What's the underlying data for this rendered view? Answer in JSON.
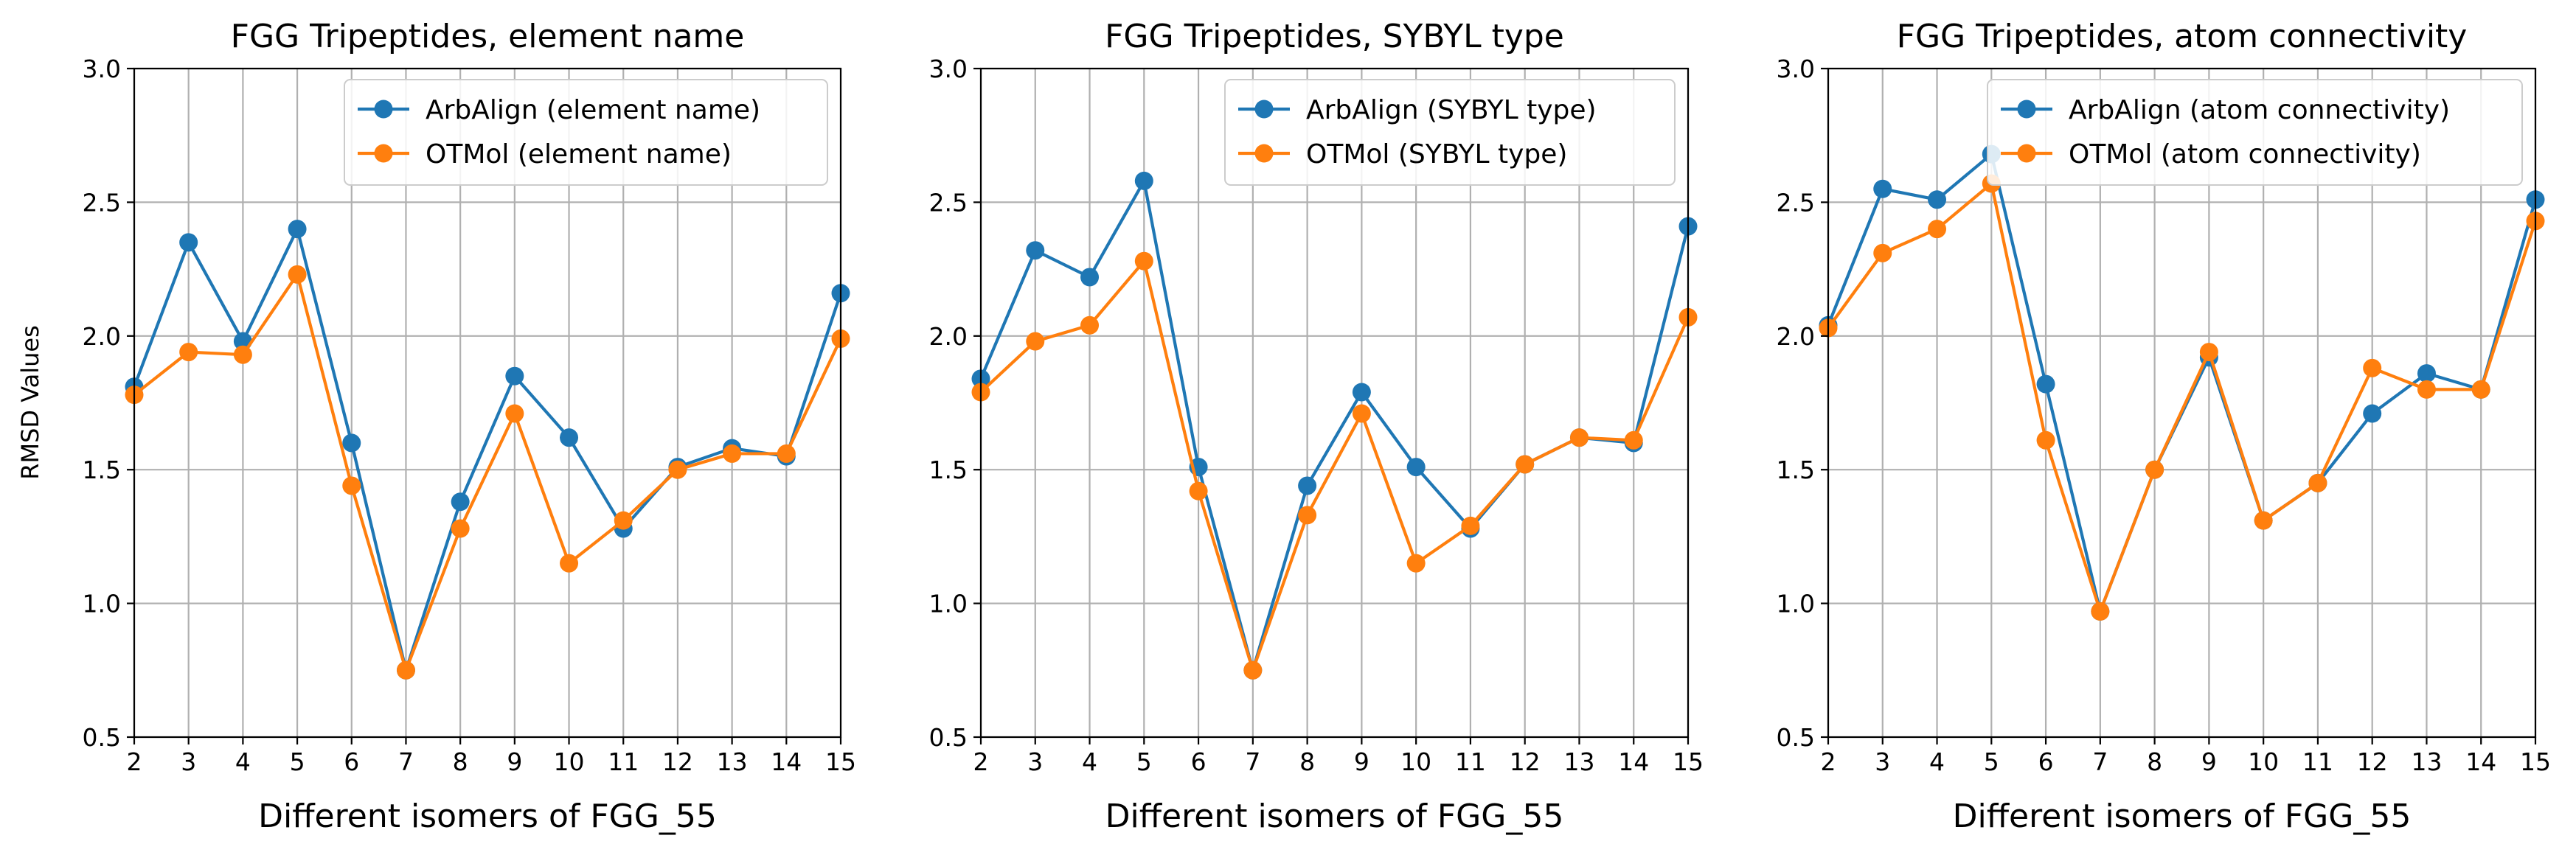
{
  "ylabel": "RMSD Values",
  "colors": {
    "ArbAlign": "#1f77b4",
    "OTMol": "#ff7f0e",
    "grid": "#b0b0b0"
  },
  "chart_data": [
    {
      "type": "line",
      "title": "FGG Tripeptides, element name",
      "xlabel": "Different isomers of FGG_55",
      "ylabel": "RMSD Values",
      "x": [
        2,
        3,
        4,
        5,
        6,
        7,
        8,
        9,
        10,
        11,
        12,
        13,
        14,
        15
      ],
      "xlim": [
        2,
        15
      ],
      "ylim": [
        0.5,
        3.0
      ],
      "yticks": [
        "0.5",
        "1.0",
        "1.5",
        "2.0",
        "2.5",
        "3.0"
      ],
      "grid": true,
      "legend_loc": "upper right",
      "series": [
        {
          "name": "ArbAlign (element name)",
          "color": "#1f77b4",
          "values": [
            1.81,
            2.35,
            1.98,
            2.4,
            1.6,
            0.75,
            1.38,
            1.85,
            1.62,
            1.28,
            1.51,
            1.58,
            1.55,
            2.16
          ]
        },
        {
          "name": "OTMol (element name)",
          "color": "#ff7f0e",
          "values": [
            1.78,
            1.94,
            1.93,
            2.23,
            1.44,
            0.75,
            1.28,
            1.71,
            1.15,
            1.31,
            1.5,
            1.56,
            1.56,
            1.99
          ]
        }
      ]
    },
    {
      "type": "line",
      "title": "FGG Tripeptides, SYBYL type",
      "xlabel": "Different isomers of FGG_55",
      "ylabel": "",
      "x": [
        2,
        3,
        4,
        5,
        6,
        7,
        8,
        9,
        10,
        11,
        12,
        13,
        14,
        15
      ],
      "xlim": [
        2,
        15
      ],
      "ylim": [
        0.5,
        3.0
      ],
      "yticks": [
        "0.5",
        "1.0",
        "1.5",
        "2.0",
        "2.5",
        "3.0"
      ],
      "grid": true,
      "legend_loc": "upper right",
      "series": [
        {
          "name": "ArbAlign (SYBYL type)",
          "color": "#1f77b4",
          "values": [
            1.84,
            2.32,
            2.22,
            2.58,
            1.51,
            0.75,
            1.44,
            1.79,
            1.51,
            1.28,
            1.52,
            1.62,
            1.6,
            2.41
          ]
        },
        {
          "name": "OTMol (SYBYL type)",
          "color": "#ff7f0e",
          "values": [
            1.79,
            1.98,
            2.04,
            2.28,
            1.42,
            0.75,
            1.33,
            1.71,
            1.15,
            1.29,
            1.52,
            1.62,
            1.61,
            2.07
          ]
        }
      ]
    },
    {
      "type": "line",
      "title": "FGG Tripeptides, atom connectivity",
      "xlabel": "Different isomers of FGG_55",
      "ylabel": "",
      "x": [
        2,
        3,
        4,
        5,
        6,
        7,
        8,
        9,
        10,
        11,
        12,
        13,
        14,
        15
      ],
      "xlim": [
        2,
        15
      ],
      "ylim": [
        0.5,
        3.0
      ],
      "yticks": [
        "0.5",
        "1.0",
        "1.5",
        "2.0",
        "2.5",
        "3.0"
      ],
      "grid": true,
      "legend_loc": "upper right",
      "series": [
        {
          "name": "ArbAlign (atom connectivity)",
          "color": "#1f77b4",
          "values": [
            2.04,
            2.55,
            2.51,
            2.68,
            1.82,
            0.97,
            1.5,
            1.92,
            1.31,
            1.45,
            1.71,
            1.86,
            1.8,
            2.51
          ]
        },
        {
          "name": "OTMol (atom connectivity)",
          "color": "#ff7f0e",
          "values": [
            2.03,
            2.31,
            2.4,
            2.57,
            1.61,
            0.97,
            1.5,
            1.94,
            1.31,
            1.45,
            1.88,
            1.8,
            1.8,
            2.43
          ]
        }
      ]
    }
  ]
}
